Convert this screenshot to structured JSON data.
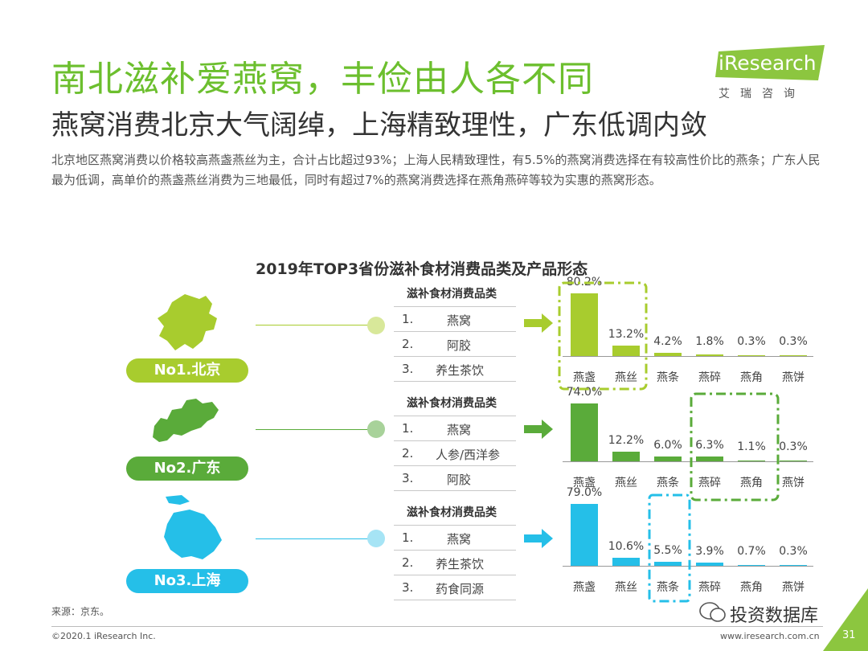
{
  "header": {
    "title": "南北滋补爱燕窝，丰俭由人各不同",
    "subtitle": "燕窝消费北京大气阔绰，上海精致理性，广东低调内敛",
    "description": "北京地区燕窝消费以价格较高燕盏燕丝为主，合计占比超过93%；上海人民精致理性，有5.5%的燕窝消费选择在有较高性价比的燕条；广东人民最为低调，高单价的燕盏燕丝消费为三地最低，同时有超过7%的燕窝消费选择在燕角燕碎等较为实惠的燕窝形态。"
  },
  "logo": {
    "name": "iResearch",
    "cn": "艾瑞咨询"
  },
  "colors": {
    "title": "#6cbf2e",
    "beijing": "#a8cc2e",
    "guangdong": "#5aab3a",
    "shanghai": "#25bfe8"
  },
  "chart_data": {
    "type": "bar",
    "title": "2019年TOP3省份滋补食材消费品类及产品形态",
    "categories": [
      "燕盏",
      "燕丝",
      "燕条",
      "燕碎",
      "燕角",
      "燕饼"
    ],
    "series": [
      {
        "name": "No1.北京",
        "values": [
          80.2,
          13.2,
          4.2,
          1.8,
          0.3,
          0.3
        ],
        "labels": [
          "80.2%",
          "13.2%",
          "4.2%",
          "1.8%",
          "0.3%",
          "0.3%"
        ],
        "table_header": "滋补食材消费品类",
        "top3": [
          {
            "rank": "1.",
            "item": "燕窝"
          },
          {
            "rank": "2.",
            "item": "阿胶"
          },
          {
            "rank": "3.",
            "item": "养生茶饮"
          }
        ]
      },
      {
        "name": "No2.广东",
        "values": [
          74.0,
          12.2,
          6.0,
          6.3,
          1.1,
          0.3
        ],
        "labels": [
          "74.0%",
          "12.2%",
          "6.0%",
          "6.3%",
          "1.1%",
          "0.3%"
        ],
        "table_header": "滋补食材消费品类",
        "top3": [
          {
            "rank": "1.",
            "item": "燕窝"
          },
          {
            "rank": "2.",
            "item": "人参/西洋参"
          },
          {
            "rank": "3.",
            "item": "阿胶"
          }
        ]
      },
      {
        "name": "No3.上海",
        "values": [
          79.0,
          10.6,
          5.5,
          3.9,
          0.7,
          0.3
        ],
        "labels": [
          "79.0%",
          "10.6%",
          "5.5%",
          "3.9%",
          "0.7%",
          "0.3%"
        ],
        "table_header": "滋补食材消费品类",
        "top3": [
          {
            "rank": "1.",
            "item": "燕窝"
          },
          {
            "rank": "2.",
            "item": "养生茶饮"
          },
          {
            "rank": "3.",
            "item": "药食同源"
          }
        ]
      }
    ],
    "highlights": [
      {
        "series": "No1.北京",
        "categories": [
          "燕盏",
          "燕丝"
        ]
      },
      {
        "series": "No2.广东",
        "categories": [
          "燕碎",
          "燕角"
        ]
      },
      {
        "series": "No3.上海",
        "categories": [
          "燕条"
        ]
      }
    ],
    "ylim": [
      0,
      100
    ]
  },
  "footer": {
    "source": "来源：京东。",
    "copyright": "©2020.1 iResearch Inc.",
    "website": "www.iresearch.com.cn",
    "watermark": "投资数据库",
    "page": "31"
  }
}
